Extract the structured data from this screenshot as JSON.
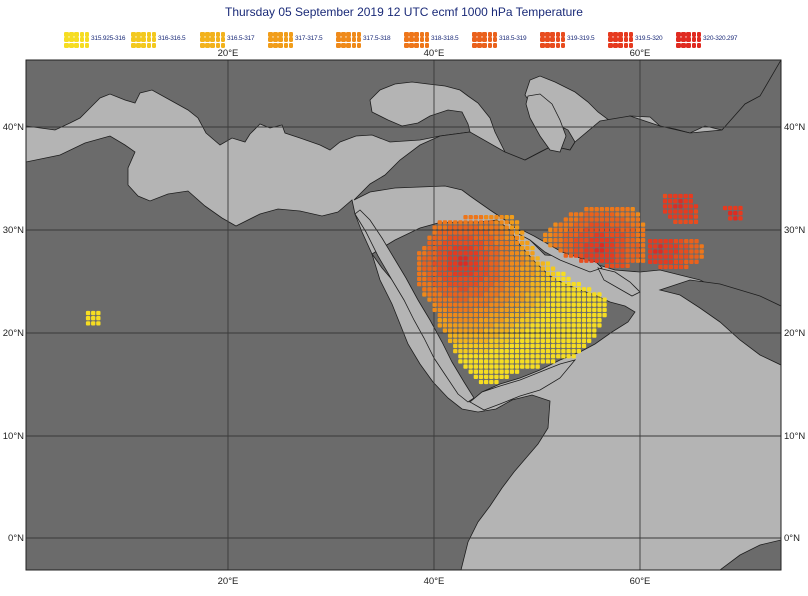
{
  "title": "Thursday  05 September 2019 12 UTC ecmf 1000 hPa  Temperature",
  "legend": [
    {
      "label": "315.925-316",
      "color": "#f6dd22"
    },
    {
      "label": "316-316.5",
      "color": "#f3c91f"
    },
    {
      "label": "316.5-317",
      "color": "#f2b21c"
    },
    {
      "label": "317-317.5",
      "color": "#f19d1a"
    },
    {
      "label": "317.5-318",
      "color": "#ef8a1a"
    },
    {
      "label": "318-318.5",
      "color": "#ee761a"
    },
    {
      "label": "318.5-319",
      "color": "#ea611c"
    },
    {
      "label": "319-319.5",
      "color": "#e84c1e"
    },
    {
      "label": "319.5-320",
      "color": "#e63a1f"
    },
    {
      "label": "320-320.297",
      "color": "#e02a20"
    }
  ],
  "axes": {
    "top": [
      "20°E",
      "40°E",
      "60°E"
    ],
    "bottom": [
      "20°E",
      "40°E",
      "60°E"
    ],
    "left": [
      "40°N",
      "30°N",
      "20°N",
      "10°N",
      "0°N"
    ],
    "right": [
      "40°N",
      "30°N",
      "20°N",
      "10°N",
      "0°N"
    ]
  },
  "colors": {
    "ocean": "#b4b4b4",
    "land": "#6b6b6b",
    "gridline": "#3a3a3a"
  }
}
